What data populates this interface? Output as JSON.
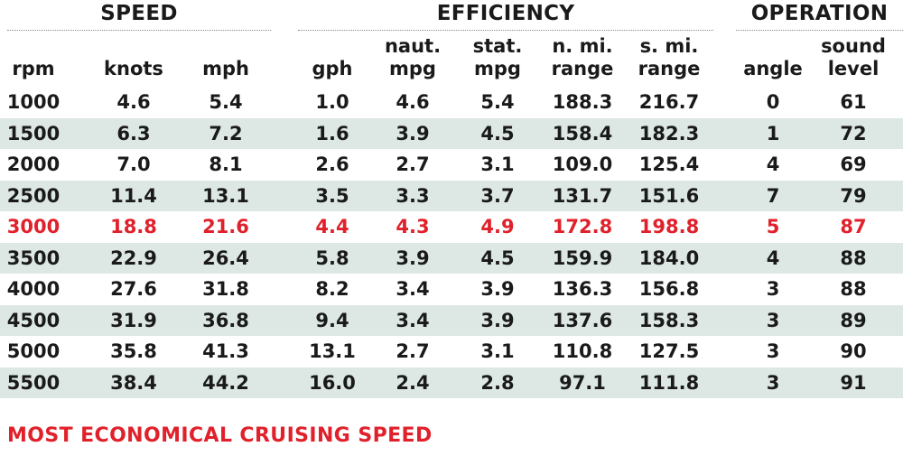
{
  "groups": {
    "speed": "SPEED",
    "efficiency": "EFFICIENCY",
    "operation": "OPERATION"
  },
  "columns": {
    "rpm": "rpm",
    "knots": "knots",
    "mph": "mph",
    "gph": "gph",
    "naut_mpg_line1": "naut.",
    "naut_mpg_line2": "mpg",
    "stat_mpg_line1": "stat.",
    "stat_mpg_line2": "mpg",
    "n_range_line1": "n. mi.",
    "n_range_line2": "range",
    "s_range_line1": "s. mi.",
    "s_range_line2": "range",
    "angle": "angle",
    "sound_line1": "sound",
    "sound_line2": "level"
  },
  "rows": [
    {
      "rpm": "1000",
      "knots": "4.6",
      "mph": "5.4",
      "gph": "1.0",
      "naut_mpg": "4.6",
      "stat_mpg": "5.4",
      "n_range": "188.3",
      "s_range": "216.7",
      "angle": "0",
      "sound": "61"
    },
    {
      "rpm": "1500",
      "knots": "6.3",
      "mph": "7.2",
      "gph": "1.6",
      "naut_mpg": "3.9",
      "stat_mpg": "4.5",
      "n_range": "158.4",
      "s_range": "182.3",
      "angle": "1",
      "sound": "72"
    },
    {
      "rpm": "2000",
      "knots": "7.0",
      "mph": "8.1",
      "gph": "2.6",
      "naut_mpg": "2.7",
      "stat_mpg": "3.1",
      "n_range": "109.0",
      "s_range": "125.4",
      "angle": "4",
      "sound": "69"
    },
    {
      "rpm": "2500",
      "knots": "11.4",
      "mph": "13.1",
      "gph": "3.5",
      "naut_mpg": "3.3",
      "stat_mpg": "3.7",
      "n_range": "131.7",
      "s_range": "151.6",
      "angle": "7",
      "sound": "79"
    },
    {
      "rpm": "3000",
      "knots": "18.8",
      "mph": "21.6",
      "gph": "4.4",
      "naut_mpg": "4.3",
      "stat_mpg": "4.9",
      "n_range": "172.8",
      "s_range": "198.8",
      "angle": "5",
      "sound": "87"
    },
    {
      "rpm": "3500",
      "knots": "22.9",
      "mph": "26.4",
      "gph": "5.8",
      "naut_mpg": "3.9",
      "stat_mpg": "4.5",
      "n_range": "159.9",
      "s_range": "184.0",
      "angle": "4",
      "sound": "88"
    },
    {
      "rpm": "4000",
      "knots": "27.6",
      "mph": "31.8",
      "gph": "8.2",
      "naut_mpg": "3.4",
      "stat_mpg": "3.9",
      "n_range": "136.3",
      "s_range": "156.8",
      "angle": "3",
      "sound": "88"
    },
    {
      "rpm": "4500",
      "knots": "31.9",
      "mph": "36.8",
      "gph": "9.4",
      "naut_mpg": "3.4",
      "stat_mpg": "3.9",
      "n_range": "137.6",
      "s_range": "158.3",
      "angle": "3",
      "sound": "89"
    },
    {
      "rpm": "5000",
      "knots": "35.8",
      "mph": "41.3",
      "gph": "13.1",
      "naut_mpg": "2.7",
      "stat_mpg": "3.1",
      "n_range": "110.8",
      "s_range": "127.5",
      "angle": "3",
      "sound": "90"
    },
    {
      "rpm": "5500",
      "knots": "38.4",
      "mph": "44.2",
      "gph": "16.0",
      "naut_mpg": "2.4",
      "stat_mpg": "2.8",
      "n_range": "97.1",
      "s_range": "111.8",
      "angle": "3",
      "sound": "91"
    }
  ],
  "highlight_row_rpm": "3000",
  "footnote": "MOST ECONOMICAL CRUISING SPEED",
  "colors": {
    "highlight": "#e0212b",
    "row_shade": "#dde8e5",
    "text": "#1a1a1a"
  }
}
